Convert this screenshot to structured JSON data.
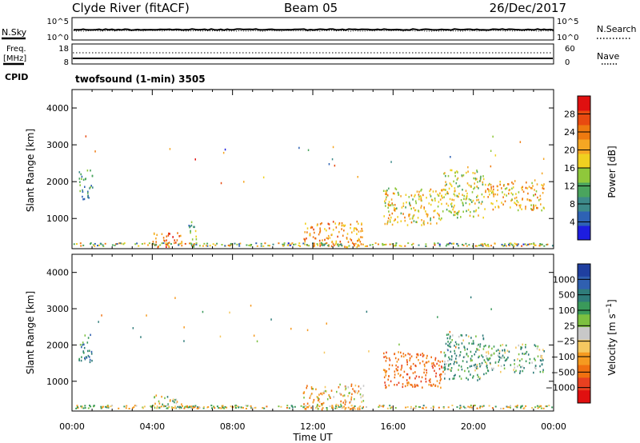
{
  "header": {
    "station": "Clyde River (fitACF)",
    "beam": "Beam 05",
    "date": "26/Dec/2017"
  },
  "noise_panel": {
    "left_label": "N.Sky",
    "right_label": "N.Search",
    "ticks": [
      "10^5",
      "10^0"
    ]
  },
  "freq_panel": {
    "left_label_1": "Freq.",
    "left_label_2": "[MHz]",
    "left_ticks": [
      "18",
      "8"
    ],
    "right_label": "Nave",
    "right_ticks": [
      "60",
      "0"
    ],
    "cpid_label": "CPID",
    "cpid_value": "twofsound (1-min) 3505"
  },
  "colors": {
    "power": [
      "#1d1de0",
      "#2e62b4",
      "#3d8a8a",
      "#4aa45e",
      "#8fc83b",
      "#f0d020",
      "#f5a623",
      "#ee7a10",
      "#e84a10",
      "#e01010"
    ],
    "velocity": [
      "#1f3fa0",
      "#3060b0",
      "#2f7c7a",
      "#3a9a5a",
      "#7cc040",
      "#c8c8c8",
      "#f5c860",
      "#f59a20",
      "#f07010",
      "#e84020",
      "#e01010"
    ],
    "ground_scatter": "#aaaaaa"
  },
  "chart_data": [
    {
      "type": "heatmap",
      "name": "power",
      "ylabel": "Slant Range [km]",
      "xlabel": "Time UT",
      "xlim": [
        "00:00",
        "24:00"
      ],
      "ylim": [
        180,
        4500
      ],
      "x_ticks": [
        "00:00",
        "04:00",
        "08:00",
        "12:00",
        "16:00",
        "20:00",
        "00:00"
      ],
      "y_ticks": [
        1000,
        2000,
        3000,
        4000
      ],
      "colorbar": {
        "label": "Power [dB]",
        "range": [
          0,
          32
        ],
        "ticks": [
          4,
          8,
          12,
          16,
          20,
          24,
          28
        ]
      },
      "scatter_regions": [
        {
          "t_start": 0.3,
          "t_end": 1.0,
          "range_min": 1500,
          "range_max": 2300,
          "level": 10
        },
        {
          "t_start": 4.0,
          "t_end": 5.5,
          "range_min": 200,
          "range_max": 600,
          "level": 24
        },
        {
          "t_start": 5.8,
          "t_end": 6.2,
          "range_min": 200,
          "range_max": 900,
          "level": 12
        },
        {
          "t_start": 11.5,
          "t_end": 14.5,
          "range_min": 200,
          "range_max": 900,
          "level": 22
        },
        {
          "t_start": 15.5,
          "t_end": 18.5,
          "range_min": 800,
          "range_max": 1800,
          "level": 18
        },
        {
          "t_start": 18.5,
          "t_end": 20.5,
          "range_min": 1000,
          "range_max": 2300,
          "level": 16
        },
        {
          "t_start": 20.5,
          "t_end": 23.5,
          "range_min": 1200,
          "range_max": 2000,
          "level": 20
        }
      ]
    },
    {
      "type": "heatmap",
      "name": "velocity",
      "ylabel": "Slant Range [km]",
      "xlabel": "Time UT",
      "xlim": [
        "00:00",
        "24:00"
      ],
      "ylim": [
        180,
        4500
      ],
      "x_ticks": [
        "00:00",
        "04:00",
        "08:00",
        "12:00",
        "16:00",
        "20:00",
        "00:00"
      ],
      "y_ticks": [
        1000,
        2000,
        3000,
        4000
      ],
      "colorbar": {
        "label": "Velocity [m s^-1]",
        "ticks": [
          1000,
          500,
          100,
          25,
          -25,
          -100,
          -500,
          -1000
        ]
      },
      "scatter_regions": [
        {
          "t_start": 0.3,
          "t_end": 1.0,
          "range_min": 1500,
          "range_max": 2300,
          "velocity": 300
        },
        {
          "t_start": 4.0,
          "t_end": 5.5,
          "range_min": 200,
          "range_max": 600,
          "velocity": 50
        },
        {
          "t_start": 11.5,
          "t_end": 14.5,
          "range_min": 200,
          "range_max": 900,
          "velocity": -150
        },
        {
          "t_start": 15.5,
          "t_end": 18.5,
          "range_min": 800,
          "range_max": 1800,
          "velocity": -400
        },
        {
          "t_start": 18.5,
          "t_end": 20.5,
          "range_min": 1000,
          "range_max": 2300,
          "velocity": 200
        },
        {
          "t_start": 20.5,
          "t_end": 23.5,
          "range_min": 1200,
          "range_max": 2000,
          "velocity": 150
        }
      ]
    }
  ]
}
